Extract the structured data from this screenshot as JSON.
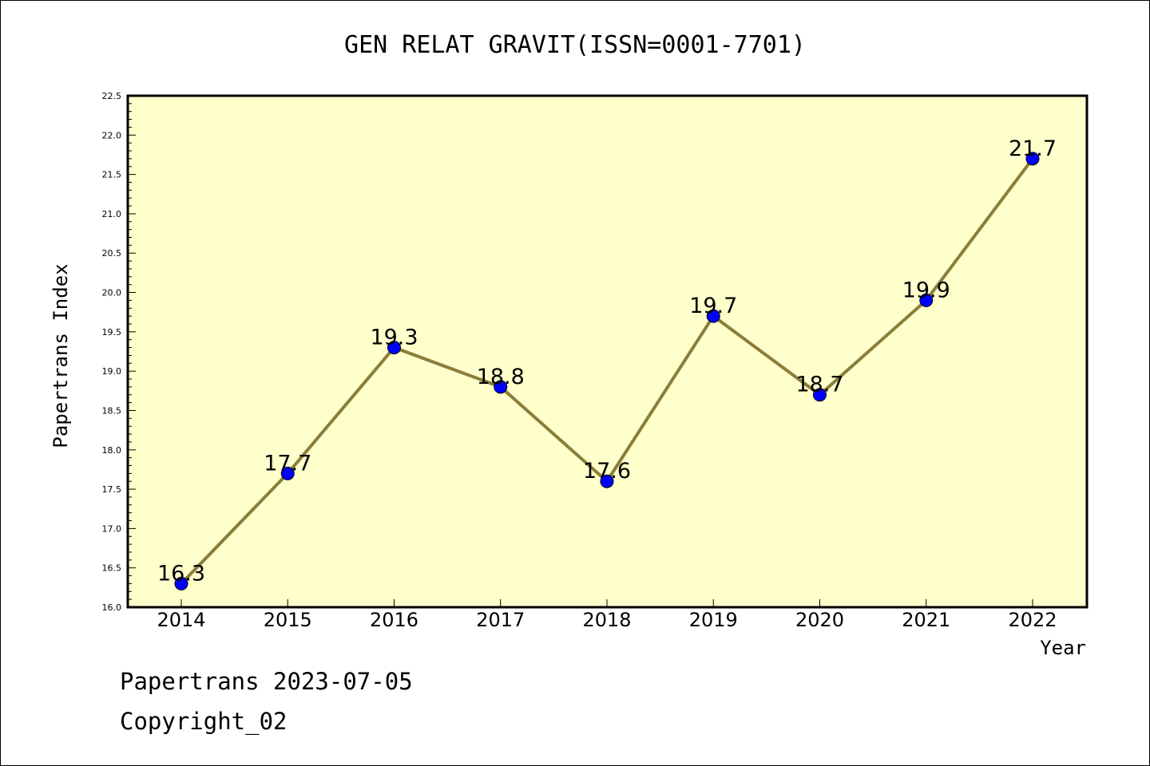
{
  "chart_data": {
    "type": "line",
    "title": "GEN RELAT GRAVIT(ISSN=0001-7701)",
    "xlabel": "Year",
    "ylabel": "Papertrans Index",
    "categories": [
      "2014",
      "2015",
      "2016",
      "2017",
      "2018",
      "2019",
      "2020",
      "2021",
      "2022"
    ],
    "values": [
      16.3,
      17.7,
      19.3,
      18.8,
      17.6,
      19.7,
      18.7,
      19.9,
      21.7
    ],
    "data_labels": [
      "16.3",
      "17.7",
      "19.3",
      "18.8",
      "17.6",
      "19.7",
      "18.7",
      "19.9",
      "21.7"
    ],
    "ylim": [
      16.0,
      22.5
    ],
    "yticks": [
      "16.0",
      "16.5",
      "17.0",
      "17.5",
      "18.0",
      "18.5",
      "19.0",
      "19.5",
      "20.0",
      "20.5",
      "21.0",
      "21.5",
      "22.0",
      "22.5"
    ],
    "grid": false,
    "colors": {
      "plot_background": "#ffffcc",
      "line": "#8b7d3a",
      "marker": "#0000ff"
    }
  },
  "footer": {
    "line1": "Papertrans 2023-07-05",
    "line2": "Copyright_02"
  }
}
